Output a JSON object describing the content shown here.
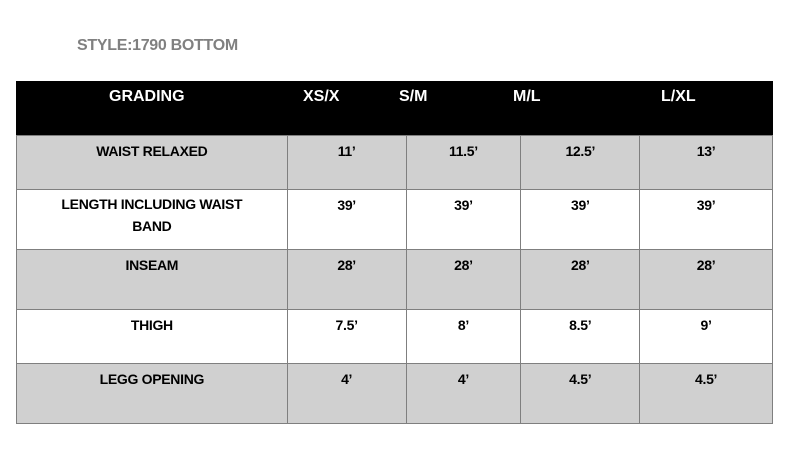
{
  "title": "STYLE:1790 BOTTOM",
  "header": [
    "GRADING",
    "XS/X",
    "S/M",
    "M/L",
    "L/XL"
  ],
  "rows": [
    {
      "label": "WAIST RELAXED",
      "values": [
        "11’",
        "11.5’",
        "12.5’",
        "13’"
      ]
    },
    {
      "label": "LENGTH INCLUDING WAIST BAND",
      "values": [
        "39’",
        "39’",
        "39’",
        "39’"
      ]
    },
    {
      "label": "INSEAM",
      "values": [
        "28’",
        "28’",
        "28’",
        "28’"
      ]
    },
    {
      "label": "THIGH",
      "values": [
        "7.5’",
        "8’",
        "8.5’",
        "9’"
      ]
    },
    {
      "label": "LEGG OPENING",
      "values": [
        "4’",
        "4’",
        "4.5’",
        "4.5’"
      ]
    }
  ],
  "colors": {
    "header_bg": "#000000",
    "shaded_row": "#d0d0d0",
    "title": "#808080"
  }
}
